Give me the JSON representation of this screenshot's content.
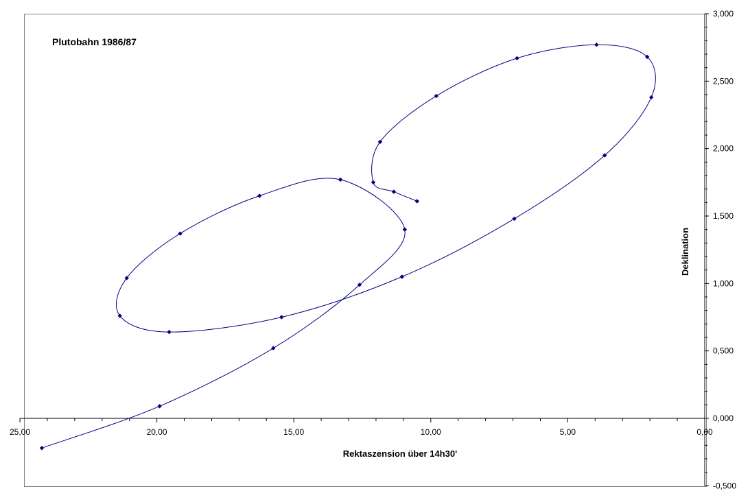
{
  "chart_data": {
    "type": "scatter",
    "title": "Plutobahn 1986/87",
    "xlabel": "Rektaszension über 14h30'",
    "ylabel": "Deklination",
    "xlim": [
      25,
      0
    ],
    "x_reversed": true,
    "ylim": [
      -0.5,
      3.0
    ],
    "x_ticks": [
      25,
      20,
      15,
      10,
      5,
      0
    ],
    "x_tick_labels": [
      "25,00",
      "20,00",
      "15,00",
      "10,00",
      "5,00",
      "0,00"
    ],
    "y_ticks": [
      -0.5,
      0,
      0.5,
      1.0,
      1.5,
      2.0,
      2.5,
      3.0
    ],
    "y_tick_labels": [
      "-0,500",
      "0,000",
      "0,500",
      "1,000",
      "1,500",
      "2,000",
      "2,500",
      "3,000"
    ],
    "y_axis_position": "right",
    "grid": false,
    "legend": "none",
    "line_style": "smoothed",
    "series": [
      {
        "color": "#000080",
        "points": [
          {
            "x": 10.5,
            "y": 1.61
          },
          {
            "x": 11.35,
            "y": 1.68
          },
          {
            "x": 12.1,
            "y": 1.75
          },
          {
            "x": 11.85,
            "y": 2.05
          },
          {
            "x": 9.8,
            "y": 2.39
          },
          {
            "x": 6.85,
            "y": 2.67
          },
          {
            "x": 3.95,
            "y": 2.77
          },
          {
            "x": 2.1,
            "y": 2.68
          },
          {
            "x": 1.95,
            "y": 2.38
          },
          {
            "x": 3.65,
            "y": 1.95
          },
          {
            "x": 6.95,
            "y": 1.48
          },
          {
            "x": 11.05,
            "y": 1.05
          },
          {
            "x": 15.45,
            "y": 0.75
          },
          {
            "x": 19.55,
            "y": 0.64
          },
          {
            "x": 21.35,
            "y": 0.76
          },
          {
            "x": 21.1,
            "y": 1.04
          },
          {
            "x": 19.15,
            "y": 1.37
          },
          {
            "x": 16.25,
            "y": 1.65
          },
          {
            "x": 13.3,
            "y": 1.77
          },
          {
            "x": 10.95,
            "y": 1.4
          },
          {
            "x": 12.6,
            "y": 0.99
          },
          {
            "x": 15.75,
            "y": 0.52
          },
          {
            "x": 19.9,
            "y": 0.09
          },
          {
            "x": 24.2,
            "y": -0.22
          }
        ]
      }
    ]
  }
}
